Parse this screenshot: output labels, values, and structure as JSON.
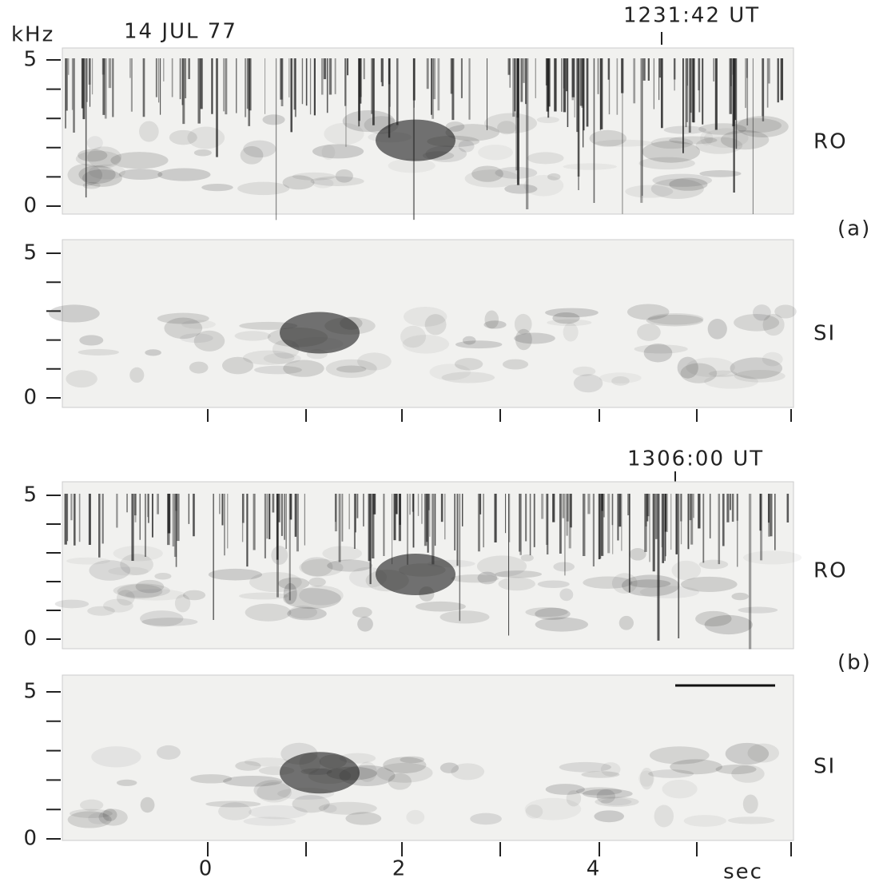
{
  "header": {
    "unit": "kHz",
    "date": "14 JUL 77"
  },
  "panels": [
    {
      "time": "1231:42 UT",
      "label": "(a)",
      "rows": [
        {
          "station": "RO"
        },
        {
          "station": "SI"
        }
      ]
    },
    {
      "time": "1306:00 UT",
      "label": "(b)",
      "rows": [
        {
          "station": "RO"
        },
        {
          "station": "SI"
        }
      ]
    }
  ],
  "y_axis_labels": {
    "top": "5",
    "bottom": "0"
  },
  "x_axis": {
    "labels": [
      "0",
      "2",
      "4"
    ],
    "unit": "sec"
  }
}
